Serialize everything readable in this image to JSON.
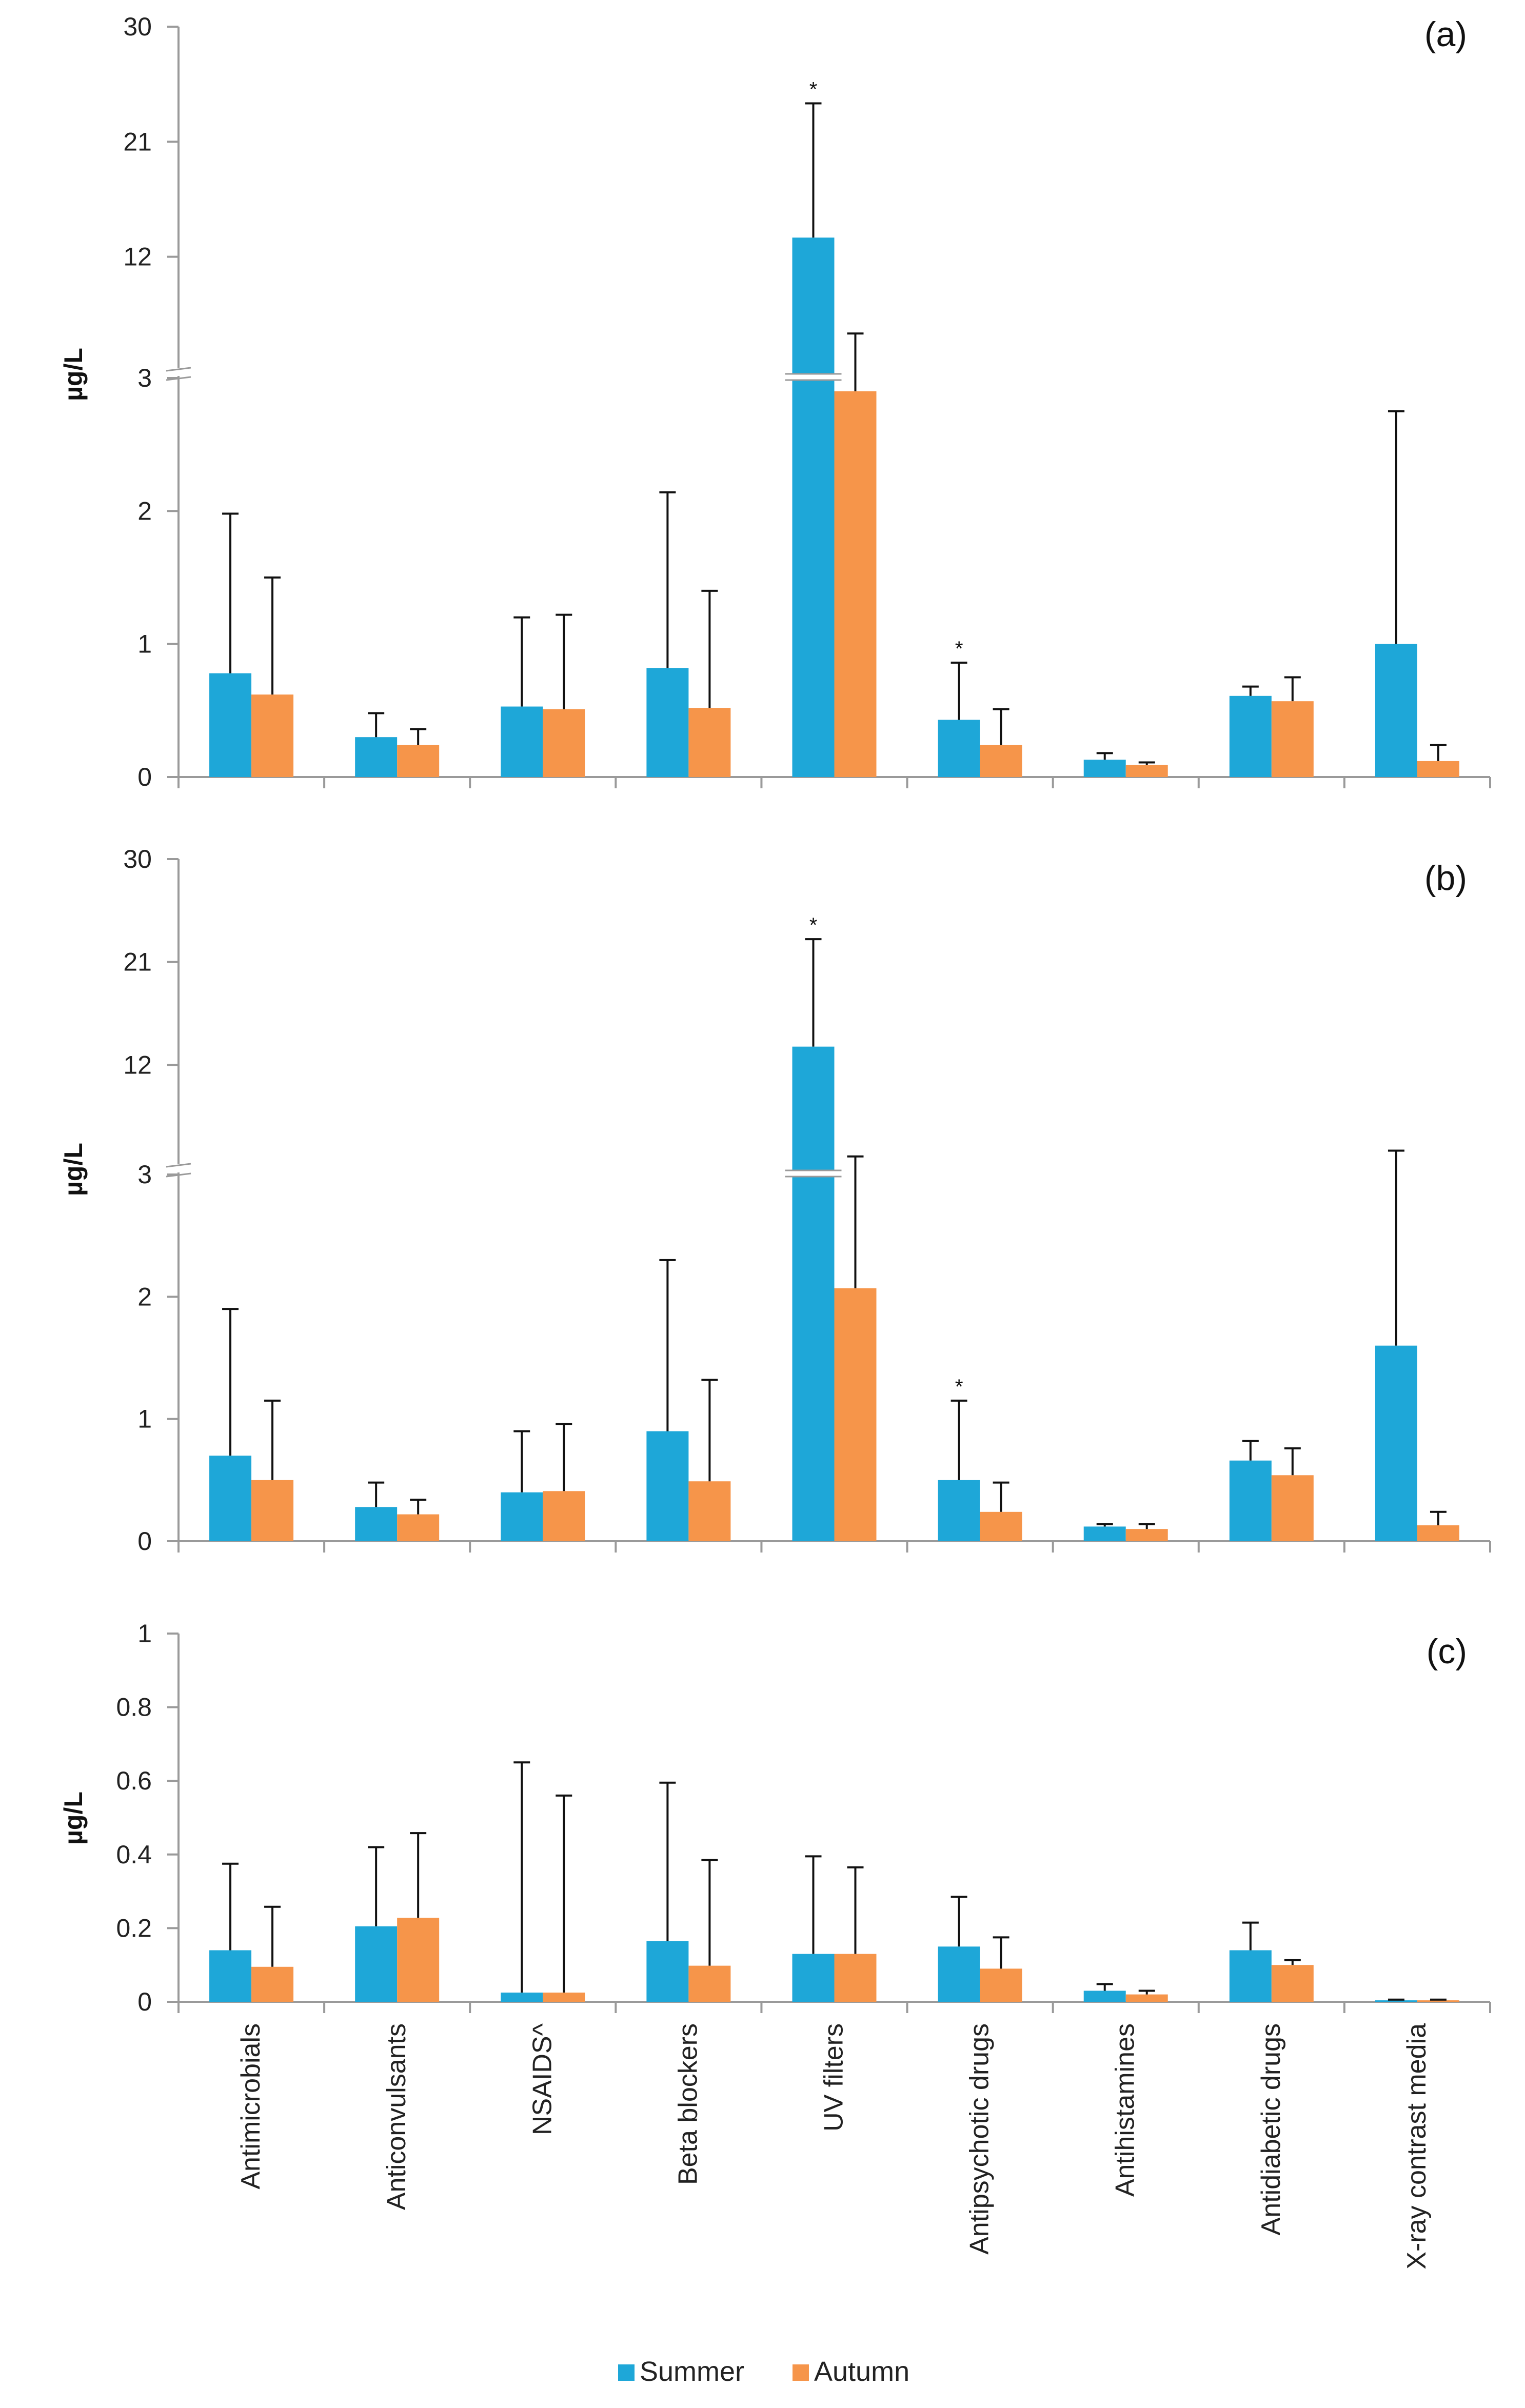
{
  "colors": {
    "summer": "#1ea7d8",
    "autumn": "#f6954a",
    "axis": "#9a9a9a",
    "errorbar": "#111111"
  },
  "legend": {
    "summer": "Summer",
    "autumn": "Autumn"
  },
  "chart_data": [
    {
      "type": "bar",
      "panel_label": "(a)",
      "ylabel": "µg/L",
      "categories": [
        "Antimicrobials",
        "Anticonvulsants",
        "NSAIDS^",
        "Beta blockers",
        "UV filters",
        "Antipsychotic drugs",
        "Antihistamines",
        "Antidiabetic drugs",
        "X-ray contrast media"
      ],
      "axis_break": {
        "lower_range": [
          0,
          3
        ],
        "upper_range": [
          3,
          30
        ]
      },
      "lower_ticks": [
        0,
        1,
        2,
        3
      ],
      "upper_ticks": [
        12,
        21,
        30
      ],
      "series": [
        {
          "name": "Summer",
          "values": [
            0.78,
            0.3,
            0.53,
            0.82,
            13.5,
            0.43,
            0.13,
            0.61,
            1.0
          ],
          "error_upper": [
            1.98,
            0.48,
            1.2,
            2.14,
            24.0,
            0.86,
            0.18,
            0.68,
            2.75
          ]
        },
        {
          "name": "Autumn",
          "values": [
            0.62,
            0.24,
            0.51,
            0.52,
            2.9,
            0.24,
            0.09,
            0.57,
            0.12
          ],
          "error_upper": [
            1.5,
            0.36,
            1.22,
            1.4,
            6.0,
            0.51,
            0.11,
            0.75,
            0.24
          ]
        }
      ],
      "annotations": [
        {
          "text": "*",
          "category": "UV filters",
          "series": "Summer"
        },
        {
          "text": "*",
          "category": "Antipsychotic drugs",
          "series": "Summer"
        }
      ]
    },
    {
      "type": "bar",
      "panel_label": "(b)",
      "ylabel": "µg/L",
      "categories": [
        "Antimicrobials",
        "Anticonvulsants",
        "NSAIDS^",
        "Beta blockers",
        "UV filters",
        "Antipsychotic drugs",
        "Antihistamines",
        "Antidiabetic drugs",
        "X-ray contrast media"
      ],
      "axis_break": {
        "lower_range": [
          0,
          3
        ],
        "upper_range": [
          3,
          30
        ]
      },
      "lower_ticks": [
        0,
        1,
        2,
        3
      ],
      "upper_ticks": [
        12,
        21,
        30
      ],
      "series": [
        {
          "name": "Summer",
          "values": [
            0.7,
            0.28,
            0.4,
            0.9,
            13.6,
            0.5,
            0.12,
            0.66,
            1.6
          ],
          "error_upper": [
            1.9,
            0.48,
            0.9,
            2.3,
            23.0,
            1.15,
            0.14,
            0.82,
            4.5
          ]
        },
        {
          "name": "Autumn",
          "values": [
            0.5,
            0.22,
            0.41,
            0.49,
            2.07,
            0.24,
            0.1,
            0.54,
            0.13
          ],
          "error_upper": [
            1.15,
            0.34,
            0.96,
            1.32,
            4.0,
            0.48,
            0.14,
            0.76,
            0.24
          ]
        }
      ],
      "annotations": [
        {
          "text": "*",
          "category": "UV filters",
          "series": "Summer"
        },
        {
          "text": "*",
          "category": "Antipsychotic drugs",
          "series": "Summer"
        }
      ]
    },
    {
      "type": "bar",
      "panel_label": "(c)",
      "ylabel": "µg/L",
      "categories": [
        "Antimicrobials",
        "Anticonvulsants",
        "NSAIDS^",
        "Beta blockers",
        "UV filters",
        "Antipsychotic drugs",
        "Antihistamines",
        "Antidiabetic drugs",
        "X-ray contrast media"
      ],
      "ylim": [
        0,
        1
      ],
      "ticks": [
        0,
        0.2,
        0.4,
        0.6,
        0.8,
        1
      ],
      "tick_labels": [
        "0",
        "0.2",
        "0.4",
        "0.6",
        "0.8",
        "1"
      ],
      "series": [
        {
          "name": "Summer",
          "values": [
            0.14,
            0.205,
            0.025,
            0.165,
            0.13,
            0.15,
            0.03,
            0.14,
            0.004
          ],
          "error_upper": [
            0.375,
            0.42,
            0.65,
            0.595,
            0.395,
            0.285,
            0.048,
            0.215,
            0.006
          ]
        },
        {
          "name": "Autumn",
          "values": [
            0.095,
            0.228,
            0.025,
            0.098,
            0.13,
            0.09,
            0.02,
            0.1,
            0.004
          ],
          "error_upper": [
            0.258,
            0.458,
            0.56,
            0.385,
            0.365,
            0.175,
            0.03,
            0.113,
            0.006
          ]
        }
      ],
      "annotations": []
    }
  ]
}
